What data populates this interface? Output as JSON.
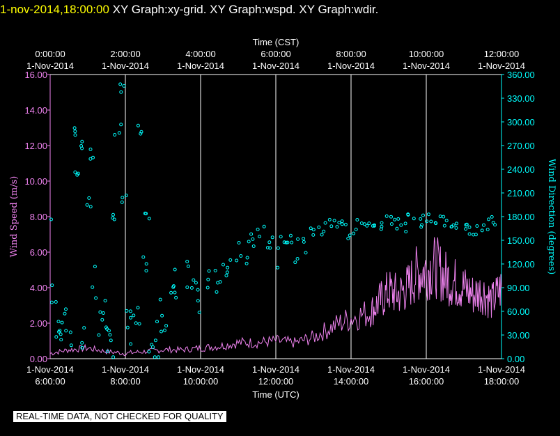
{
  "header": {
    "time": "1-nov-2014,18:00:00",
    "title": "XY Graph:xy-grid.  XY Graph:wspd.  XY Graph:wdir."
  },
  "disclaimer": "REAL-TIME DATA, NOT CHECKED FOR QUALITY",
  "colors": {
    "background": "#000000",
    "axis": "#ffffff",
    "grid": "#ffffff",
    "wind_speed": "#ee82ee",
    "wind_direction": "#00ffff",
    "header_time": "#ffff00"
  },
  "chart_data": {
    "type": "line",
    "grid": true,
    "xlabel_top": "Time (CST)",
    "xlabel_bottom": "Time (UTC)",
    "ylabel_left": "Wind Speed (m/s)",
    "ylabel_right": "Wind Direction (degrees)",
    "xlim_utc_hours": [
      6,
      18
    ],
    "bottom_ticks": [
      {
        "date": "1-Nov-2014",
        "time": "6:00:00",
        "hour": 6
      },
      {
        "date": "1-Nov-2014",
        "time": "8:00:00",
        "hour": 8
      },
      {
        "date": "1-Nov-2014",
        "time": "10:00:00",
        "hour": 10
      },
      {
        "date": "1-Nov-2014",
        "time": "12:00:00",
        "hour": 12
      },
      {
        "date": "1-Nov-2014",
        "time": "14:00:00",
        "hour": 14
      },
      {
        "date": "1-Nov-2014",
        "time": "16:00:00",
        "hour": 16
      },
      {
        "date": "1-Nov-2014",
        "time": "18:00:00",
        "hour": 18
      }
    ],
    "top_ticks": [
      {
        "time": "0:00:00",
        "date": "1-Nov-2014",
        "hour": 6
      },
      {
        "time": "2:00:00",
        "date": "1-Nov-2014",
        "hour": 8
      },
      {
        "time": "4:00:00",
        "date": "1-Nov-2014",
        "hour": 10
      },
      {
        "time": "6:00:00",
        "date": "1-Nov-2014",
        "hour": 12
      },
      {
        "time": "8:00:00",
        "date": "1-Nov-2014",
        "hour": 14
      },
      {
        "time": "10:00:00",
        "date": "1-Nov-2014",
        "hour": 16
      },
      {
        "time": "12:00:00",
        "date": "1-Nov-2014",
        "hour": 18
      }
    ],
    "left_axis": {
      "min": 0,
      "max": 16,
      "ticks": [
        "0.00",
        "2.00",
        "4.00",
        "6.00",
        "8.00",
        "10.00",
        "12.00",
        "14.00",
        "16.00"
      ]
    },
    "right_axis": {
      "min": 0,
      "max": 360,
      "ticks": [
        "0.00",
        "30.00",
        "60.00",
        "90.00",
        "120.00",
        "150.00",
        "180.00",
        "210.00",
        "240.00",
        "270.00",
        "300.00",
        "330.00",
        "360.00"
      ]
    },
    "series": [
      {
        "name": "wspd",
        "kind": "line",
        "axis": "left",
        "x": [
          6.0,
          6.5,
          7.0,
          7.5,
          8.0,
          8.5,
          9.0,
          9.5,
          10.0,
          10.5,
          11.0,
          11.5,
          12.0,
          12.5,
          13.0,
          13.5,
          14.0,
          14.5,
          14.75,
          15.0,
          15.25,
          15.5,
          15.75,
          16.0,
          16.25,
          16.5,
          16.75,
          17.0,
          17.25,
          17.5,
          17.75,
          18.0
        ],
        "y": [
          0.3,
          0.5,
          0.6,
          0.4,
          0.3,
          0.4,
          0.5,
          0.5,
          0.6,
          0.7,
          0.9,
          0.9,
          1.0,
          0.9,
          1.2,
          1.8,
          2.3,
          2.6,
          3.2,
          3.8,
          3.6,
          4.0,
          4.8,
          5.0,
          5.2,
          4.6,
          4.3,
          4.0,
          3.6,
          3.8,
          3.2,
          4.0
        ]
      },
      {
        "name": "wdir",
        "kind": "scatter",
        "axis": "right",
        "x": [
          6.0,
          6.1,
          6.2,
          6.3,
          6.4,
          6.5,
          6.6,
          6.7,
          6.8,
          6.9,
          7.0,
          7.1,
          7.2,
          7.3,
          7.4,
          7.5,
          7.6,
          7.7,
          7.8,
          7.9,
          8.0,
          8.1,
          8.2,
          8.3,
          8.4,
          8.5,
          8.6,
          8.7,
          8.8,
          8.9,
          9.0,
          9.2,
          9.4,
          9.6,
          9.8,
          10.0,
          10.2,
          10.4,
          10.6,
          10.8,
          11.0,
          11.2,
          11.4,
          11.6,
          11.8,
          12.0,
          12.2,
          12.4,
          12.6,
          12.8,
          13.0,
          13.2,
          13.4,
          13.6,
          13.8,
          14.0,
          14.2,
          14.4,
          14.6,
          14.8,
          15.0,
          15.2,
          15.4,
          15.6,
          15.8,
          16.0,
          16.2,
          16.4,
          16.6,
          16.8,
          17.0,
          17.2,
          17.4,
          17.6,
          17.8,
          18.0
        ],
        "y": [
          170,
          80,
          30,
          20,
          55,
          40,
          290,
          230,
          270,
          20,
          200,
          260,
          100,
          50,
          60,
          30,
          20,
          180,
          290,
          340,
          200,
          60,
          40,
          50,
          290,
          110,
          180,
          30,
          10,
          70,
          55,
          80,
          90,
          100,
          110,
          80,
          100,
          90,
          110,
          130,
          125,
          135,
          150,
          160,
          145,
          140,
          150,
          155,
          130,
          140,
          160,
          165,
          170,
          175,
          170,
          160,
          170,
          165,
          175,
          170,
          175,
          172,
          168,
          178,
          170,
          175,
          170,
          176,
          172,
          168,
          170,
          160,
          165,
          170,
          172,
          168
        ]
      }
    ]
  }
}
